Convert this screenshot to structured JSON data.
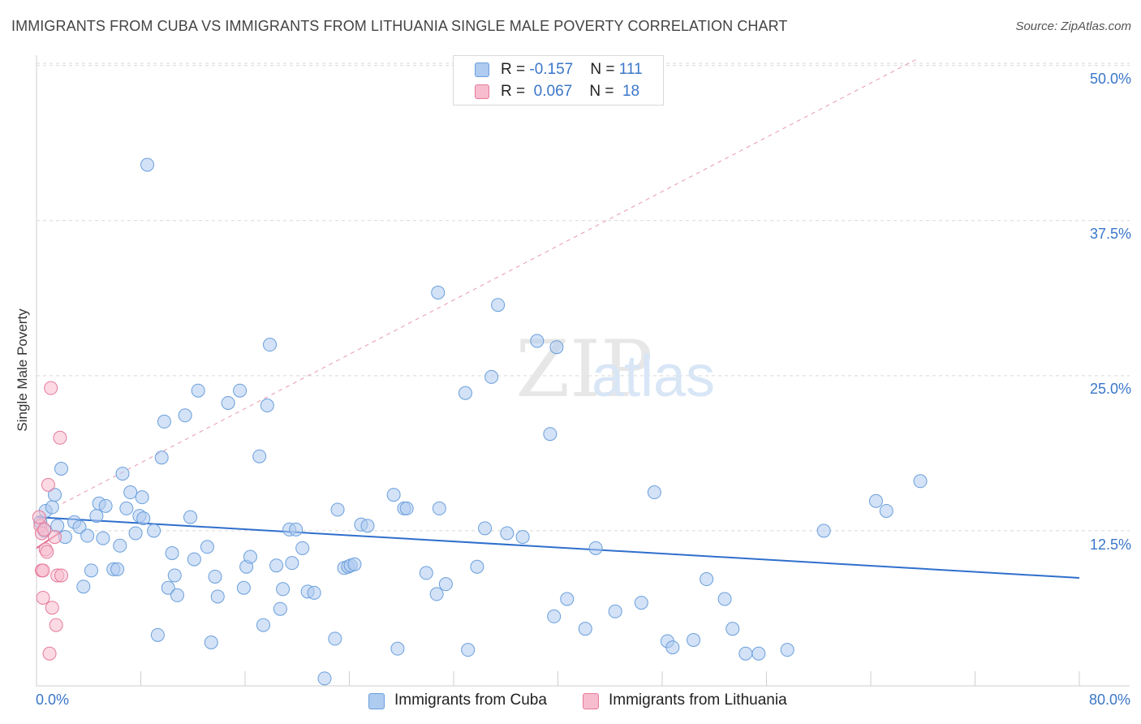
{
  "header": {
    "title": "IMMIGRANTS FROM CUBA VS IMMIGRANTS FROM LITHUANIA SINGLE MALE POVERTY CORRELATION CHART",
    "source": "Source: ZipAtlas.com"
  },
  "legend": {
    "rows": [
      {
        "r_label": "R = ",
        "r_value": "-0.157",
        "n_label": "N = ",
        "n_value": "111"
      },
      {
        "r_label": "R = ",
        "r_value": "0.067",
        "n_label": "N = ",
        "n_value": "18"
      }
    ]
  },
  "colors": {
    "cuba_fill": "#aecbf0",
    "cuba_stroke": "#6a9fdc",
    "cuba_line": "#2f6fcc",
    "lith_fill": "#f7bccd",
    "lith_stroke": "#e57a9b",
    "lith_line": "#e06c8e",
    "grid": "#d9d9d9",
    "axis_text": "#3a76c8"
  },
  "chart_data": {
    "type": "scatter",
    "title": "IMMIGRANTS FROM CUBA VS IMMIGRANTS FROM LITHUANIA SINGLE MALE POVERTY CORRELATION CHART",
    "xlabel": "",
    "ylabel": "Single Male Poverty",
    "xlim": [
      0,
      80
    ],
    "ylim": [
      0,
      52
    ],
    "x_tick_labels": [
      "0.0%",
      "80.0%"
    ],
    "y_ticks": [
      12.5,
      25.0,
      37.5,
      50.0
    ],
    "y_tick_labels": [
      "12.5%",
      "25.0%",
      "37.5%",
      "50.0%"
    ],
    "grid": true,
    "legend_position": "top-center",
    "watermark": "ZIPatlas",
    "series": [
      {
        "name": "Immigrants from Cuba",
        "R": -0.157,
        "N": 111,
        "trend": {
          "x": [
            0,
            80
          ],
          "y": [
            13.6,
            8.7
          ]
        },
        "points": [
          [
            0.3,
            13.2
          ],
          [
            0.6,
            12.5
          ],
          [
            0.7,
            14.1
          ],
          [
            1.2,
            14.4
          ],
          [
            1.4,
            15.4
          ],
          [
            1.6,
            12.9
          ],
          [
            1.9,
            17.5
          ],
          [
            2.2,
            12.0
          ],
          [
            2.9,
            13.2
          ],
          [
            3.3,
            12.8
          ],
          [
            3.6,
            8.0
          ],
          [
            3.9,
            12.1
          ],
          [
            4.2,
            9.3
          ],
          [
            4.6,
            13.7
          ],
          [
            4.8,
            14.7
          ],
          [
            5.1,
            11.9
          ],
          [
            5.3,
            14.5
          ],
          [
            5.9,
            9.4
          ],
          [
            6.2,
            9.4
          ],
          [
            6.4,
            11.3
          ],
          [
            6.6,
            17.1
          ],
          [
            6.9,
            14.3
          ],
          [
            7.2,
            15.6
          ],
          [
            7.6,
            12.3
          ],
          [
            7.9,
            13.7
          ],
          [
            8.1,
            15.2
          ],
          [
            8.5,
            42.0
          ],
          [
            9.0,
            12.5
          ],
          [
            9.3,
            4.1
          ],
          [
            9.6,
            18.4
          ],
          [
            9.8,
            21.3
          ],
          [
            10.1,
            7.9
          ],
          [
            10.4,
            10.7
          ],
          [
            10.6,
            8.9
          ],
          [
            10.8,
            7.3
          ],
          [
            11.4,
            21.8
          ],
          [
            11.8,
            13.6
          ],
          [
            12.1,
            10.2
          ],
          [
            12.4,
            23.8
          ],
          [
            13.1,
            11.2
          ],
          [
            13.4,
            3.5
          ],
          [
            13.7,
            8.8
          ],
          [
            13.9,
            7.2
          ],
          [
            14.7,
            22.8
          ],
          [
            15.6,
            23.8
          ],
          [
            15.9,
            7.9
          ],
          [
            16.1,
            9.6
          ],
          [
            16.4,
            10.4
          ],
          [
            17.1,
            18.5
          ],
          [
            17.4,
            4.9
          ],
          [
            17.7,
            22.6
          ],
          [
            17.9,
            27.5
          ],
          [
            18.4,
            9.7
          ],
          [
            18.7,
            6.2
          ],
          [
            18.9,
            7.8
          ],
          [
            19.4,
            12.6
          ],
          [
            19.9,
            12.6
          ],
          [
            19.6,
            9.9
          ],
          [
            20.4,
            11.1
          ],
          [
            20.8,
            7.6
          ],
          [
            21.3,
            7.5
          ],
          [
            22.1,
            0.6
          ],
          [
            22.9,
            3.8
          ],
          [
            23.1,
            14.2
          ],
          [
            23.6,
            9.5
          ],
          [
            23.9,
            9.6
          ],
          [
            24.1,
            9.7
          ],
          [
            24.4,
            9.8
          ],
          [
            24.9,
            13.0
          ],
          [
            25.4,
            12.9
          ],
          [
            27.4,
            15.4
          ],
          [
            27.7,
            3.0
          ],
          [
            28.2,
            14.3
          ],
          [
            28.4,
            14.3
          ],
          [
            29.9,
            9.1
          ],
          [
            30.7,
            7.4
          ],
          [
            30.9,
            14.3
          ],
          [
            31.4,
            8.2
          ],
          [
            30.8,
            31.7
          ],
          [
            32.9,
            23.6
          ],
          [
            33.1,
            2.9
          ],
          [
            33.8,
            9.6
          ],
          [
            34.4,
            12.7
          ],
          [
            34.9,
            24.9
          ],
          [
            35.4,
            30.7
          ],
          [
            36.1,
            12.3
          ],
          [
            37.3,
            12.0
          ],
          [
            38.4,
            27.8
          ],
          [
            39.4,
            20.3
          ],
          [
            39.9,
            27.3
          ],
          [
            39.7,
            5.6
          ],
          [
            40.7,
            7.0
          ],
          [
            42.1,
            4.6
          ],
          [
            42.9,
            11.1
          ],
          [
            44.4,
            6.0
          ],
          [
            46.4,
            6.7
          ],
          [
            47.4,
            15.6
          ],
          [
            48.4,
            3.6
          ],
          [
            48.8,
            3.1
          ],
          [
            50.4,
            3.7
          ],
          [
            51.4,
            8.6
          ],
          [
            52.8,
            7.0
          ],
          [
            53.4,
            4.6
          ],
          [
            54.4,
            2.6
          ],
          [
            55.4,
            2.6
          ],
          [
            57.6,
            2.9
          ],
          [
            60.4,
            12.5
          ],
          [
            64.4,
            14.9
          ],
          [
            65.2,
            14.1
          ],
          [
            67.8,
            16.5
          ],
          [
            8.2,
            13.5
          ]
        ]
      },
      {
        "name": "Immigrants from Lithuania",
        "R": 0.067,
        "N": 18,
        "trend": {
          "x": [
            0,
            2.0
          ],
          "y": [
            11.1,
            12.5
          ]
        },
        "trend_ext": {
          "x": [
            2.0,
            67.5
          ],
          "y": [
            14.7,
            50.5
          ]
        },
        "points": [
          [
            0.3,
            12.9
          ],
          [
            0.4,
            12.3
          ],
          [
            0.4,
            9.3
          ],
          [
            0.5,
            7.1
          ],
          [
            0.5,
            9.3
          ],
          [
            0.6,
            12.6
          ],
          [
            0.7,
            11.0
          ],
          [
            0.8,
            10.8
          ],
          [
            0.9,
            16.2
          ],
          [
            1.0,
            2.6
          ],
          [
            1.1,
            24.0
          ],
          [
            1.2,
            6.3
          ],
          [
            1.4,
            12.0
          ],
          [
            1.5,
            4.9
          ],
          [
            1.6,
            8.9
          ],
          [
            1.8,
            20.0
          ],
          [
            1.9,
            8.9
          ],
          [
            0.2,
            13.6
          ]
        ]
      }
    ]
  }
}
